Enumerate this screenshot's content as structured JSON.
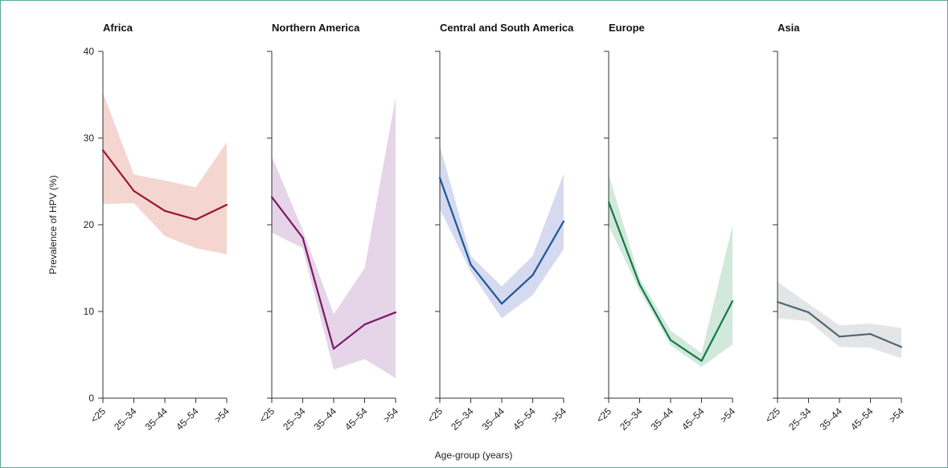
{
  "chart_data": {
    "type": "line",
    "ylabel": "Prevalence of HPV (%)",
    "xlabel": "Age-group (years)",
    "ylim": [
      0,
      40
    ],
    "yticks": [
      0,
      10,
      20,
      30,
      40
    ],
    "categories": [
      "<25",
      "25–34",
      "35–44",
      "45–54",
      ">54"
    ],
    "grid": false,
    "panels": [
      {
        "title": "Africa",
        "color": "#9a1430",
        "band_color": "#f5d5cf",
        "values": [
          28.6,
          23.9,
          21.6,
          20.6,
          22.3
        ],
        "lower": [
          22.4,
          22.5,
          18.7,
          17.3,
          16.6
        ],
        "upper": [
          35.2,
          25.8,
          25.1,
          24.3,
          29.5
        ]
      },
      {
        "title": "Northern America",
        "color": "#7a1a68",
        "band_color": "#e6d5e8",
        "values": [
          23.2,
          18.5,
          5.7,
          8.5,
          9.9
        ],
        "lower": [
          19.1,
          17.3,
          3.3,
          4.5,
          2.3
        ],
        "upper": [
          27.9,
          19.4,
          9.7,
          15.0,
          34.7
        ]
      },
      {
        "title": "Central and South America",
        "color": "#1f5796",
        "band_color": "#d5daf0",
        "values": [
          25.4,
          15.4,
          10.9,
          14.2,
          20.4
        ],
        "lower": [
          21.8,
          14.6,
          9.2,
          11.9,
          17.2
        ],
        "upper": [
          29.1,
          16.4,
          12.9,
          16.4,
          25.9
        ]
      },
      {
        "title": "Europe",
        "color": "#127a45",
        "band_color": "#d3e8dc",
        "values": [
          22.6,
          13.1,
          6.7,
          4.3,
          11.2
        ],
        "lower": [
          19.9,
          12.4,
          6.1,
          3.6,
          6.2
        ],
        "upper": [
          25.8,
          13.8,
          7.8,
          5.2,
          19.9
        ]
      },
      {
        "title": "Asia",
        "color": "#4f6773",
        "band_color": "#e3e5e7",
        "values": [
          11.1,
          9.9,
          7.1,
          7.4,
          5.9
        ],
        "lower": [
          9.2,
          8.9,
          5.9,
          5.8,
          4.6
        ],
        "upper": [
          13.4,
          10.9,
          8.4,
          8.6,
          8.1
        ]
      }
    ]
  }
}
